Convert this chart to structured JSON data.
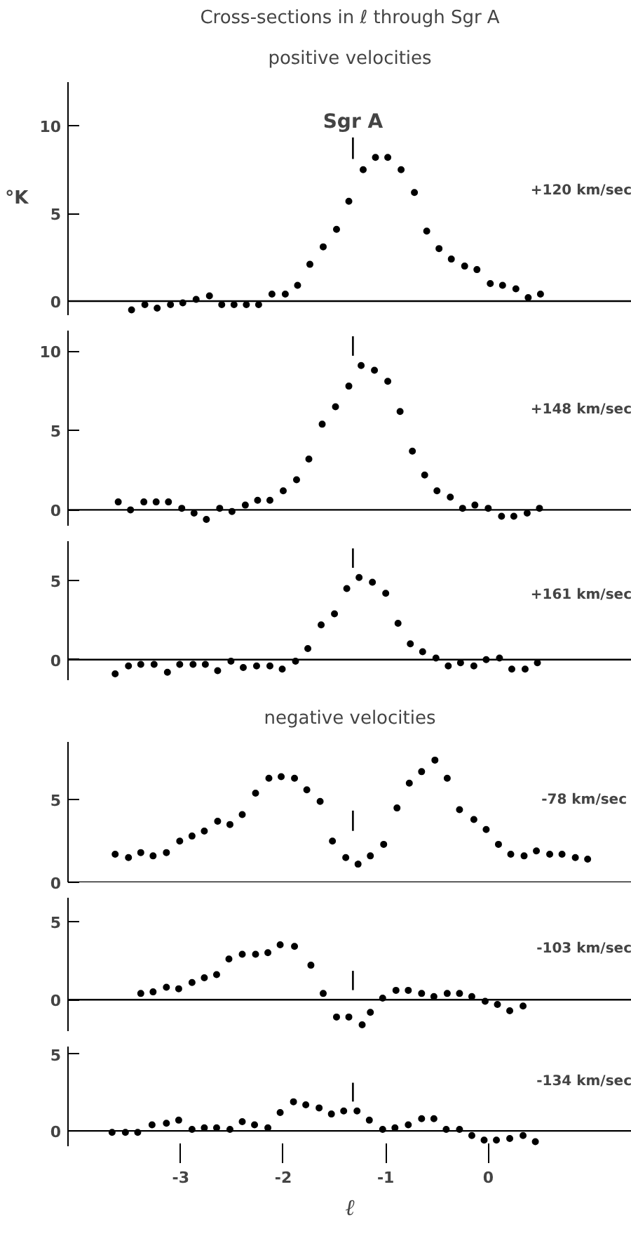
{
  "chart_data": [
    {
      "type": "scatter",
      "title": "Cross-sections in ℓ through Sgr A",
      "subtitle": "positive velocities",
      "ylabel": "°K",
      "marker": "circle",
      "tick_labels": "y",
      "xlim": [
        -4.1,
        1.4
      ],
      "ylim": [
        -0.8,
        12.5
      ],
      "yticks": [
        0,
        5,
        10
      ],
      "annotations": [
        "Sgr A",
        "+120 km/sec"
      ],
      "ref_lines": [
        {
          "axis": "x",
          "value": -1.32
        }
      ],
      "series": [
        {
          "color": "#000000",
          "x": [
            -3.48,
            -3.35,
            -3.23,
            -3.1,
            -2.98,
            -2.85,
            -2.72,
            -2.6,
            -2.48,
            -2.36,
            -2.24,
            -2.11,
            -1.98,
            -1.86,
            -1.74,
            -1.61,
            -1.48,
            -1.36,
            -1.22,
            -1.1,
            -0.98,
            -0.85,
            -0.72,
            -0.6,
            -0.48,
            -0.36,
            -0.23,
            -0.11,
            0.02,
            0.14,
            0.27,
            0.39,
            0.51
          ],
          "values": [
            -0.5,
            -0.2,
            -0.4,
            -0.2,
            -0.1,
            0.1,
            0.3,
            -0.2,
            -0.2,
            -0.2,
            -0.2,
            0.4,
            0.4,
            0.9,
            2.1,
            3.1,
            4.1,
            5.7,
            7.5,
            8.2,
            8.2,
            7.5,
            6.2,
            4.0,
            3.0,
            2.4,
            2.0,
            1.8,
            1.0,
            0.9,
            0.7,
            0.2,
            0.4
          ]
        }
      ]
    },
    {
      "type": "scatter",
      "marker": "circle",
      "tick_labels": "y",
      "xlim": [
        -4.1,
        1.4
      ],
      "ylim": [
        -1,
        11.3
      ],
      "yticks": [
        0,
        5,
        10
      ],
      "annotations": [
        "+148 km/sec"
      ],
      "ref_lines": [
        {
          "axis": "x",
          "value": -1.32
        }
      ],
      "series": [
        {
          "color": "#000000",
          "x": [
            -3.61,
            -3.49,
            -3.36,
            -3.24,
            -3.12,
            -2.99,
            -2.87,
            -2.75,
            -2.62,
            -2.5,
            -2.37,
            -2.25,
            -2.13,
            -2.0,
            -1.87,
            -1.75,
            -1.62,
            -1.49,
            -1.36,
            -1.24,
            -1.11,
            -0.98,
            -0.86,
            -0.74,
            -0.62,
            -0.5,
            -0.37,
            -0.25,
            -0.13,
            0.0,
            0.13,
            0.25,
            0.38,
            0.5
          ],
          "values": [
            0.5,
            0.0,
            0.5,
            0.5,
            0.5,
            0.1,
            -0.2,
            -0.6,
            0.1,
            -0.1,
            0.3,
            0.6,
            0.6,
            1.2,
            1.9,
            3.2,
            5.4,
            6.5,
            7.8,
            9.1,
            8.8,
            8.1,
            6.2,
            3.7,
            2.2,
            1.2,
            0.8,
            0.1,
            0.3,
            0.1,
            -0.4,
            -0.4,
            -0.2,
            0.1
          ]
        }
      ]
    },
    {
      "type": "scatter",
      "marker": "circle",
      "tick_labels": "y",
      "xlim": [
        -4.1,
        1.4
      ],
      "ylim": [
        -1.3,
        7.5
      ],
      "yticks": [
        0,
        5
      ],
      "annotations": [
        "+161 km/sec"
      ],
      "ref_lines": [
        {
          "axis": "x",
          "value": -1.32
        }
      ],
      "series": [
        {
          "color": "#000000",
          "x": [
            -3.64,
            -3.51,
            -3.39,
            -3.26,
            -3.13,
            -3.01,
            -2.88,
            -2.76,
            -2.64,
            -2.51,
            -2.39,
            -2.26,
            -2.13,
            -2.01,
            -1.88,
            -1.76,
            -1.63,
            -1.5,
            -1.38,
            -1.26,
            -1.13,
            -1.0,
            -0.88,
            -0.76,
            -0.64,
            -0.51,
            -0.39,
            -0.27,
            -0.14,
            -0.02,
            0.11,
            0.23,
            0.36,
            0.48
          ],
          "values": [
            -0.9,
            -0.4,
            -0.3,
            -0.3,
            -0.8,
            -0.3,
            -0.3,
            -0.3,
            -0.7,
            -0.1,
            -0.5,
            -0.4,
            -0.4,
            -0.6,
            -0.1,
            0.7,
            2.2,
            2.9,
            4.5,
            5.2,
            4.9,
            4.2,
            2.3,
            1.0,
            0.5,
            0.1,
            -0.4,
            -0.2,
            -0.4,
            0.0,
            0.1,
            -0.6,
            -0.6,
            -0.2
          ]
        }
      ]
    },
    {
      "type": "scatter",
      "subtitle": "negative velocities",
      "marker": "circle",
      "tick_labels": "y",
      "xlim": [
        -4.1,
        1.4
      ],
      "ylim": [
        0,
        8.5
      ],
      "yticks": [
        0,
        5
      ],
      "annotations": [
        "-78  km/sec"
      ],
      "ref_lines": [
        {
          "axis": "x",
          "value": -1.32
        }
      ],
      "series": [
        {
          "color": "#000000",
          "x": [
            -3.64,
            -3.51,
            -3.39,
            -3.27,
            -3.14,
            -3.01,
            -2.89,
            -2.77,
            -2.64,
            -2.52,
            -2.4,
            -2.27,
            -2.14,
            -2.02,
            -1.89,
            -1.77,
            -1.64,
            -1.52,
            -1.39,
            -1.27,
            -1.15,
            -1.02,
            -0.89,
            -0.77,
            -0.65,
            -0.52,
            -0.4,
            -0.28,
            -0.14,
            -0.02,
            0.1,
            0.22,
            0.35,
            0.47,
            0.6,
            0.72,
            0.85,
            0.97
          ],
          "values": [
            1.7,
            1.5,
            1.8,
            1.6,
            1.8,
            2.5,
            2.8,
            3.1,
            3.7,
            3.5,
            4.1,
            5.4,
            6.3,
            6.4,
            6.3,
            5.6,
            4.9,
            2.5,
            1.5,
            1.1,
            1.6,
            2.3,
            4.5,
            6.0,
            6.7,
            7.4,
            6.3,
            4.4,
            3.8,
            3.2,
            2.3,
            1.7,
            1.6,
            1.9,
            1.7,
            1.7,
            1.5,
            1.4
          ]
        }
      ]
    },
    {
      "type": "scatter",
      "marker": "circle",
      "tick_labels": "y",
      "xlim": [
        -4.1,
        1.4
      ],
      "ylim": [
        -2,
        6.5
      ],
      "yticks": [
        0,
        5
      ],
      "annotations": [
        "-103 km/sec"
      ],
      "ref_lines": [
        {
          "axis": "x",
          "value": -1.32
        }
      ],
      "series": [
        {
          "color": "#000000",
          "x": [
            -3.39,
            -3.27,
            -3.14,
            -3.02,
            -2.89,
            -2.77,
            -2.65,
            -2.53,
            -2.4,
            -2.27,
            -2.15,
            -2.03,
            -1.89,
            -1.73,
            -1.61,
            -1.48,
            -1.36,
            -1.23,
            -1.15,
            -1.03,
            -0.9,
            -0.78,
            -0.65,
            -0.53,
            -0.4,
            -0.28,
            -0.16,
            -0.03,
            0.09,
            0.21,
            0.34
          ],
          "values": [
            0.4,
            0.5,
            0.8,
            0.7,
            1.1,
            1.4,
            1.6,
            2.6,
            2.9,
            2.9,
            3.0,
            3.5,
            3.4,
            2.2,
            0.4,
            -1.1,
            -1.1,
            -1.6,
            -0.8,
            0.1,
            0.6,
            0.6,
            0.4,
            0.2,
            0.4,
            0.4,
            0.2,
            -0.1,
            -0.3,
            -0.7,
            -0.4
          ]
        }
      ]
    },
    {
      "type": "scatter",
      "xlabel": "ℓ",
      "marker": "circle",
      "xlim": [
        -4.1,
        1.4
      ],
      "ylim": [
        -1,
        5.5
      ],
      "xticks": [
        -3,
        -2,
        -1,
        0
      ],
      "yticks": [
        0,
        5
      ],
      "annotations": [
        "-134 km/sec"
      ],
      "ref_lines": [
        {
          "axis": "x",
          "value": -1.32
        }
      ],
      "series": [
        {
          "color": "#000000",
          "x": [
            -3.67,
            -3.54,
            -3.42,
            -3.28,
            -3.14,
            -3.02,
            -2.89,
            -2.77,
            -2.65,
            -2.52,
            -2.4,
            -2.28,
            -2.15,
            -2.03,
            -1.9,
            -1.78,
            -1.65,
            -1.53,
            -1.41,
            -1.28,
            -1.16,
            -1.03,
            -0.91,
            -0.78,
            -0.65,
            -0.53,
            -0.41,
            -0.28,
            -0.16,
            -0.04,
            0.08,
            0.21,
            0.34,
            0.46
          ],
          "values": [
            -0.1,
            -0.1,
            -0.1,
            0.4,
            0.5,
            0.7,
            0.1,
            0.2,
            0.2,
            0.1,
            0.6,
            0.4,
            0.2,
            1.2,
            1.9,
            1.7,
            1.5,
            1.1,
            1.3,
            1.3,
            0.7,
            0.1,
            0.2,
            0.4,
            0.8,
            0.8,
            0.1,
            0.1,
            -0.3,
            -0.6,
            -0.6,
            -0.5,
            -0.3,
            -0.7
          ]
        }
      ]
    }
  ]
}
